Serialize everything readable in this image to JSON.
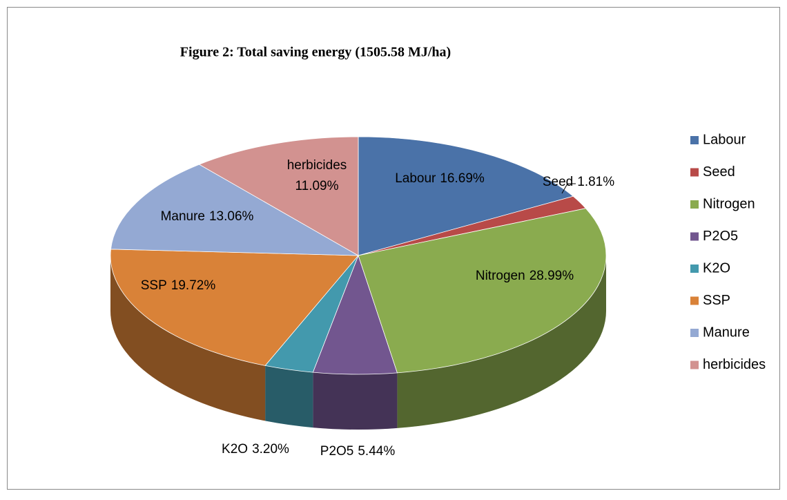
{
  "chart_data": {
    "type": "pie",
    "title": "Figure 2: Total saving energy (1505.58 MJ/ha)",
    "categories": [
      "Labour",
      "Seed",
      "Nitrogen",
      "P2O5",
      "K2O",
      "SSP",
      "Manure",
      "herbicides"
    ],
    "values": [
      16.69,
      1.81,
      28.99,
      5.44,
      3.2,
      19.72,
      13.06,
      11.09
    ],
    "value_labels": [
      "16.69%",
      "1.81%",
      "28.99%",
      "5.44%",
      "3.20%",
      "19.72%",
      "13.06%",
      "11.09%"
    ],
    "colors": [
      "#4a72a8",
      "#b84a48",
      "#8aab4f",
      "#72568f",
      "#4399ad",
      "#d98238",
      "#94a9d3",
      "#d29290"
    ],
    "legend": "right"
  }
}
